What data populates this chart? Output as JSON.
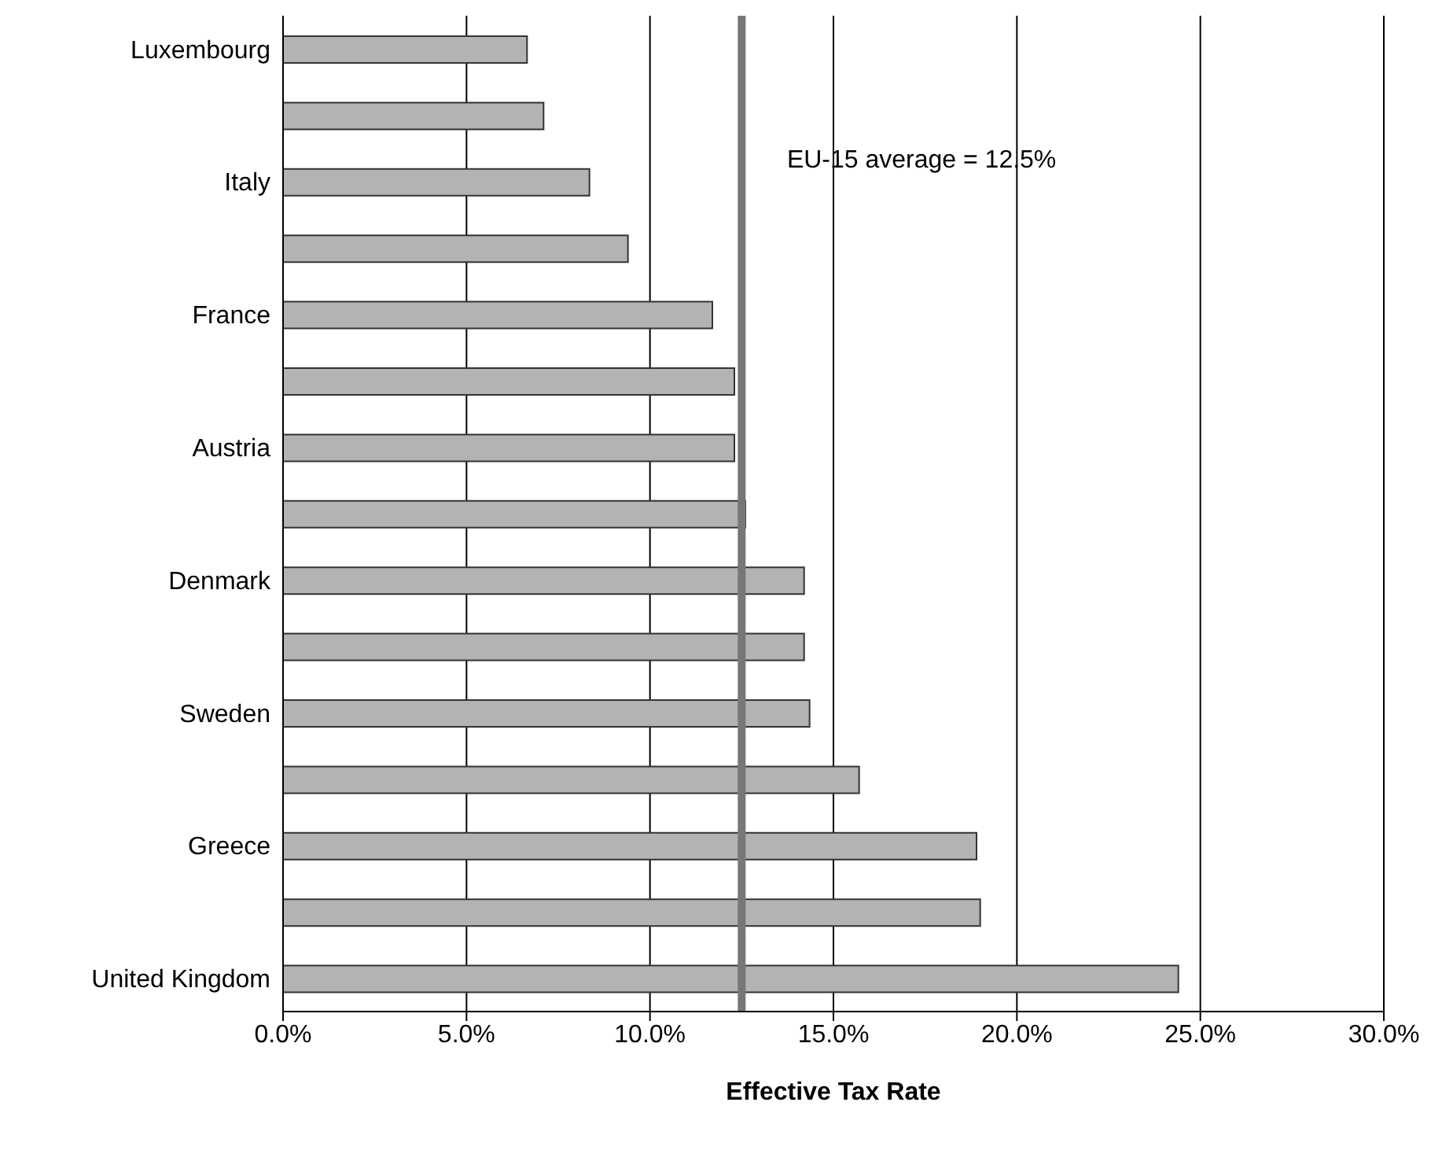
{
  "chart_data": {
    "type": "bar",
    "orientation": "horizontal",
    "xlabel": "Effective Tax Rate",
    "categories": [
      "Luxembourg",
      null,
      "Italy",
      null,
      "France",
      null,
      "Austria",
      null,
      "Denmark",
      null,
      "Sweden",
      null,
      "Greece",
      null,
      "United Kingdom"
    ],
    "values": [
      6.65,
      7.1,
      8.35,
      9.4,
      11.7,
      12.3,
      12.3,
      12.6,
      14.2,
      14.2,
      14.35,
      15.7,
      18.9,
      19.0,
      24.4
    ],
    "color": "#b3b3b3",
    "xlim": [
      0,
      30
    ],
    "xticks": [
      {
        "value": 0,
        "label": "0.0%"
      },
      {
        "value": 5,
        "label": "5.0%"
      },
      {
        "value": 10,
        "label": "10.0%"
      },
      {
        "value": 15,
        "label": "15.0%"
      },
      {
        "value": 20,
        "label": "20.0%"
      },
      {
        "value": 25,
        "label": "25.0%"
      },
      {
        "value": 30,
        "label": "30.0%"
      }
    ],
    "grid": "x",
    "ref_lines": [
      {
        "axis": "x",
        "value": 12.5,
        "label": "EU-15 average = 12.5%",
        "color": "#777777"
      }
    ]
  }
}
